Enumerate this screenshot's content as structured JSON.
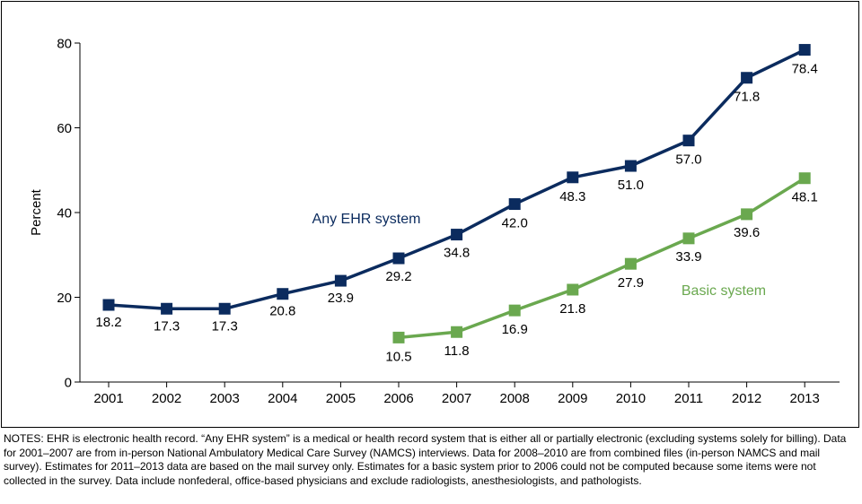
{
  "chart_data": {
    "type": "line",
    "ylabel": "Percent",
    "xlabel": "",
    "ylim": [
      0,
      80
    ],
    "yticks": [
      0,
      20,
      40,
      60,
      80
    ],
    "categories": [
      "2001",
      "2002",
      "2003",
      "2004",
      "2005",
      "2006",
      "2007",
      "2008",
      "2009",
      "2010",
      "2011",
      "2012",
      "2013"
    ],
    "series": [
      {
        "name": "Any EHR system",
        "color": "#0b2b5e",
        "x": [
          "2001",
          "2002",
          "2003",
          "2004",
          "2005",
          "2006",
          "2007",
          "2008",
          "2009",
          "2010",
          "2011",
          "2012",
          "2013"
        ],
        "values": [
          18.2,
          17.3,
          17.3,
          20.8,
          23.9,
          29.2,
          34.8,
          42.0,
          48.3,
          51.0,
          57.0,
          71.8,
          78.4
        ],
        "labels": [
          "18.2",
          "17.3",
          "17.3",
          "20.8",
          "23.9",
          "29.2",
          "34.8",
          "42.0",
          "48.3",
          "51.0",
          "57.0",
          "71.8",
          "78.4"
        ]
      },
      {
        "name": "Basic system",
        "color": "#6aa84f",
        "x": [
          "2006",
          "2007",
          "2008",
          "2009",
          "2010",
          "2011",
          "2012",
          "2013"
        ],
        "values": [
          10.5,
          11.8,
          16.9,
          21.8,
          27.9,
          33.9,
          39.6,
          48.1
        ],
        "labels": [
          "10.5",
          "11.8",
          "16.9",
          "21.8",
          "27.9",
          "33.9",
          "39.6",
          "48.1"
        ]
      }
    ]
  },
  "notes": "NOTES: EHR is electronic health record. “Any EHR system” is a medical or health record system that is either all or partially electronic (excluding systems solely for billing). Data for 2001–2007 are from in-person National Ambulatory Medical Care Survey (NAMCS) interviews. Data for 2008–2010 are from combined files (in-person NAMCS and mail survey). Estimates for 2011–2013 data are based on the mail survey only. Estimates for a basic system prior to 2006 could not be computed because some items were not collected in the survey. Data include nonfederal, office-based physicians and exclude radiologists, anesthesiologists, and pathologists."
}
